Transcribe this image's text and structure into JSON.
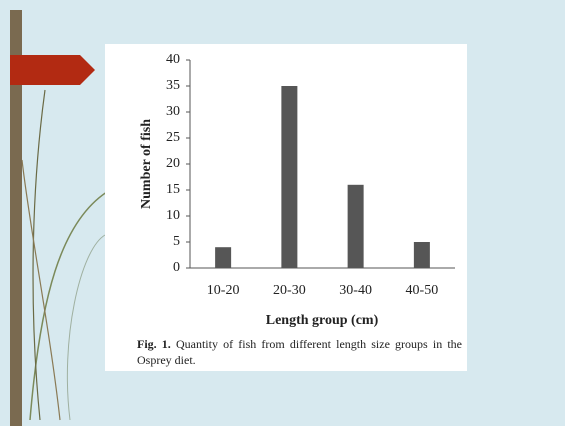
{
  "chart_data": {
    "type": "bar",
    "categories": [
      "10-20",
      "20-30",
      "30-40",
      "40-50"
    ],
    "values": [
      4,
      35,
      16,
      5
    ],
    "color": "#565656",
    "xlabel": "Length group (cm)",
    "ylabel": "Number of fish",
    "ylim": [
      0,
      40
    ],
    "yticks": [
      0,
      5,
      10,
      15,
      20,
      25,
      30,
      35,
      40
    ],
    "grid": false,
    "caption": {
      "label": "Fig. 1.",
      "text": "Quantity of fish from different length size groups in the Osprey diet."
    }
  }
}
